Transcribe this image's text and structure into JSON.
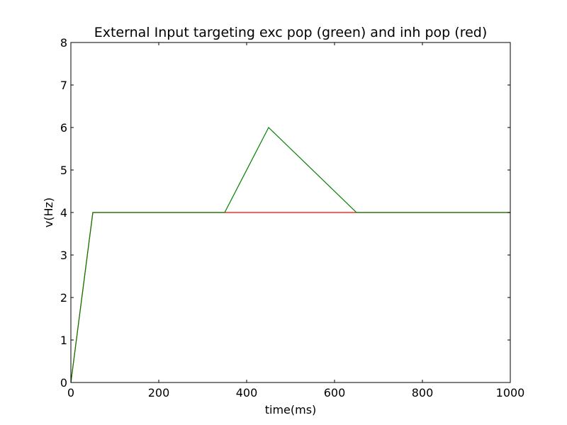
{
  "chart_data": {
    "type": "line",
    "title": "External Input targeting exc pop (green) and inh pop (red)",
    "xlabel": "time(ms)",
    "ylabel": "v(Hz)",
    "xlim": [
      0,
      1000
    ],
    "ylim": [
      0,
      8
    ],
    "xticks": [
      0,
      200,
      400,
      600,
      800,
      1000
    ],
    "yticks": [
      0,
      1,
      2,
      3,
      4,
      5,
      6,
      7,
      8
    ],
    "grid": false,
    "legend": "none",
    "series": [
      {
        "color": "#ff0000",
        "x": [
          0,
          50,
          1000
        ],
        "y": [
          0,
          4,
          4
        ]
      },
      {
        "color": "#008000",
        "x": [
          0,
          50,
          350,
          450,
          650,
          1000
        ],
        "y": [
          0,
          4,
          4,
          6,
          4,
          4
        ]
      }
    ]
  }
}
